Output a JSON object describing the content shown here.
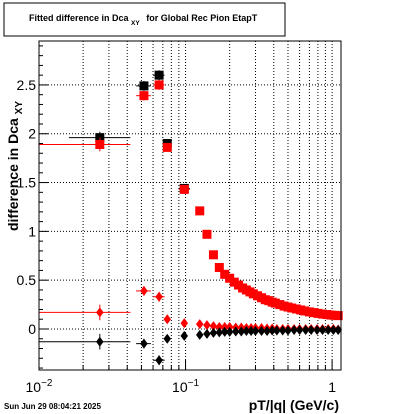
{
  "chart_data": {
    "type": "scatter",
    "title": "Fitted difference in Dca",
    "title_subscript": "XY",
    "title_suffix": "for Global Rec Pion EtapT",
    "xlabel": "pT/|q| (GeV/c)",
    "ylabel": "difference in Dca",
    "ylabel_subscript": "XY",
    "x_scale": "log",
    "xlim": [
      0.01,
      1.15
    ],
    "ylim": [
      -0.42,
      2.95
    ],
    "grid": true,
    "y_ticks": [
      "0",
      "0.5",
      "1",
      "1.5",
      "2",
      "2.5"
    ],
    "x_tick_labels": [
      {
        "value": 0.01,
        "base": "10",
        "exp": "−2"
      },
      {
        "value": 0.1,
        "base": "10",
        "exp": "−1"
      },
      {
        "value": 1,
        "base": "1",
        "exp": ""
      }
    ],
    "timestamp": "Sun Jun 29 08:04:21 2025",
    "series": [
      {
        "color": "#000000",
        "marker": "square",
        "points": [
          {
            "x": 0.026,
            "y": 1.96,
            "xerr": [
              0.016,
              0.042
            ],
            "yerr": 0.06
          },
          {
            "x": 0.052,
            "y": 2.49,
            "xerr": [
              0.046,
              0.058
            ],
            "yerr": 0.05
          },
          {
            "x": 0.066,
            "y": 2.6,
            "xerr": [
              0.06,
              0.072
            ],
            "yerr": 0.05
          },
          {
            "x": 0.075,
            "y": 1.9,
            "xerr": [
              0.072,
              0.079
            ],
            "yerr": 0.03
          },
          {
            "x": 0.098,
            "y": 1.44,
            "xerr": [
              0.09,
              0.107
            ],
            "yerr": 0.02
          }
        ]
      },
      {
        "color": "#ff0000",
        "marker": "square",
        "points": [
          {
            "x": 0.026,
            "y": 1.89,
            "xerr": [
              0.01,
              0.042
            ],
            "yerr": 0.07
          },
          {
            "x": 0.052,
            "y": 2.39,
            "xerr": [
              0.046,
              0.058
            ],
            "yerr": 0.05
          },
          {
            "x": 0.066,
            "y": 2.5,
            "xerr": [
              0.06,
              0.072
            ],
            "yerr": 0.05
          },
          {
            "x": 0.075,
            "y": 1.86,
            "xerr": [
              0.072,
              0.079
            ],
            "yerr": 0.03
          },
          {
            "x": 0.098,
            "y": 1.43,
            "xerr": [
              0.09,
              0.107
            ],
            "yerr": 0.02
          },
          {
            "x": 0.125,
            "y": 1.21
          },
          {
            "x": 0.14,
            "y": 0.97
          },
          {
            "x": 0.155,
            "y": 0.76
          },
          {
            "x": 0.17,
            "y": 0.63
          },
          {
            "x": 0.185,
            "y": 0.56
          },
          {
            "x": 0.2,
            "y": 0.52
          },
          {
            "x": 0.215,
            "y": 0.48
          },
          {
            "x": 0.23,
            "y": 0.45
          },
          {
            "x": 0.245,
            "y": 0.42
          },
          {
            "x": 0.26,
            "y": 0.4
          },
          {
            "x": 0.275,
            "y": 0.38
          },
          {
            "x": 0.29,
            "y": 0.36
          },
          {
            "x": 0.31,
            "y": 0.34
          },
          {
            "x": 0.33,
            "y": 0.32
          },
          {
            "x": 0.35,
            "y": 0.3
          },
          {
            "x": 0.37,
            "y": 0.29
          },
          {
            "x": 0.39,
            "y": 0.275
          },
          {
            "x": 0.41,
            "y": 0.265
          },
          {
            "x": 0.44,
            "y": 0.25
          },
          {
            "x": 0.47,
            "y": 0.235
          },
          {
            "x": 0.5,
            "y": 0.225
          },
          {
            "x": 0.53,
            "y": 0.215
          },
          {
            "x": 0.57,
            "y": 0.205
          },
          {
            "x": 0.61,
            "y": 0.195
          },
          {
            "x": 0.65,
            "y": 0.185
          },
          {
            "x": 0.7,
            "y": 0.175
          },
          {
            "x": 0.75,
            "y": 0.168
          },
          {
            "x": 0.8,
            "y": 0.16
          },
          {
            "x": 0.86,
            "y": 0.153
          },
          {
            "x": 0.92,
            "y": 0.148
          },
          {
            "x": 0.98,
            "y": 0.143
          },
          {
            "x": 1.04,
            "y": 0.14
          },
          {
            "x": 1.1,
            "y": 0.137
          }
        ]
      },
      {
        "color": "#ff0000",
        "marker": "diamond",
        "points": [
          {
            "x": 0.026,
            "y": 0.17,
            "xerr": [
              0.01,
              0.042
            ],
            "yerr": 0.08
          },
          {
            "x": 0.052,
            "y": 0.39,
            "xerr": [
              0.046,
              0.058
            ],
            "yerr": 0.05
          },
          {
            "x": 0.066,
            "y": 0.33,
            "xerr": [
              0.06,
              0.072
            ],
            "yerr": 0.05
          },
          {
            "x": 0.075,
            "y": 0.1,
            "xerr": [
              0.072,
              0.079
            ],
            "yerr": 0.03
          },
          {
            "x": 0.098,
            "y": 0.06
          },
          {
            "x": 0.125,
            "y": 0.05
          },
          {
            "x": 0.14,
            "y": 0.04
          },
          {
            "x": 0.155,
            "y": 0.03
          },
          {
            "x": 0.17,
            "y": 0.02
          },
          {
            "x": 0.185,
            "y": 0.02
          },
          {
            "x": 0.2,
            "y": 0.02
          },
          {
            "x": 0.22,
            "y": 0.015
          },
          {
            "x": 0.24,
            "y": 0.015
          },
          {
            "x": 0.26,
            "y": 0.01
          },
          {
            "x": 0.28,
            "y": 0.01
          },
          {
            "x": 0.3,
            "y": 0.01
          },
          {
            "x": 0.33,
            "y": 0.01
          },
          {
            "x": 0.36,
            "y": 0.005
          },
          {
            "x": 0.39,
            "y": 0.005
          },
          {
            "x": 0.42,
            "y": 0.0
          },
          {
            "x": 0.46,
            "y": 0.0
          },
          {
            "x": 0.5,
            "y": 0.0
          },
          {
            "x": 0.55,
            "y": 0.0
          },
          {
            "x": 0.6,
            "y": 0.0
          },
          {
            "x": 0.66,
            "y": 0.0
          },
          {
            "x": 0.72,
            "y": 0.0
          },
          {
            "x": 0.79,
            "y": 0.0
          },
          {
            "x": 0.86,
            "y": 0.0
          },
          {
            "x": 0.94,
            "y": 0.0
          },
          {
            "x": 1.02,
            "y": 0.0
          },
          {
            "x": 1.1,
            "y": -0.005
          }
        ]
      },
      {
        "color": "#000000",
        "marker": "diamond",
        "points": [
          {
            "x": 0.026,
            "y": -0.13,
            "xerr": [
              0.01,
              0.042
            ],
            "yerr": 0.08
          },
          {
            "x": 0.052,
            "y": -0.15,
            "xerr": [
              0.046,
              0.058
            ],
            "yerr": 0.05
          },
          {
            "x": 0.066,
            "y": -0.32,
            "xerr": [
              0.06,
              0.072
            ],
            "yerr": 0.05
          },
          {
            "x": 0.075,
            "y": -0.1,
            "xerr": [
              0.072,
              0.079
            ],
            "yerr": 0.03
          },
          {
            "x": 0.098,
            "y": -0.07
          },
          {
            "x": 0.125,
            "y": -0.06
          },
          {
            "x": 0.14,
            "y": -0.05
          },
          {
            "x": 0.155,
            "y": -0.04
          },
          {
            "x": 0.17,
            "y": -0.035
          },
          {
            "x": 0.185,
            "y": -0.03
          },
          {
            "x": 0.2,
            "y": -0.03
          },
          {
            "x": 0.22,
            "y": -0.025
          },
          {
            "x": 0.24,
            "y": -0.025
          },
          {
            "x": 0.26,
            "y": -0.02
          },
          {
            "x": 0.28,
            "y": -0.02
          },
          {
            "x": 0.3,
            "y": -0.02
          },
          {
            "x": 0.33,
            "y": -0.02
          },
          {
            "x": 0.36,
            "y": -0.02
          },
          {
            "x": 0.39,
            "y": -0.015
          },
          {
            "x": 0.42,
            "y": -0.015
          },
          {
            "x": 0.46,
            "y": -0.015
          },
          {
            "x": 0.5,
            "y": -0.015
          },
          {
            "x": 0.55,
            "y": -0.01
          },
          {
            "x": 0.6,
            "y": -0.01
          },
          {
            "x": 0.66,
            "y": -0.01
          },
          {
            "x": 0.72,
            "y": -0.01
          },
          {
            "x": 0.79,
            "y": -0.01
          },
          {
            "x": 0.86,
            "y": -0.01
          },
          {
            "x": 0.94,
            "y": -0.01
          },
          {
            "x": 1.02,
            "y": -0.01
          },
          {
            "x": 1.1,
            "y": -0.01
          }
        ]
      }
    ]
  }
}
